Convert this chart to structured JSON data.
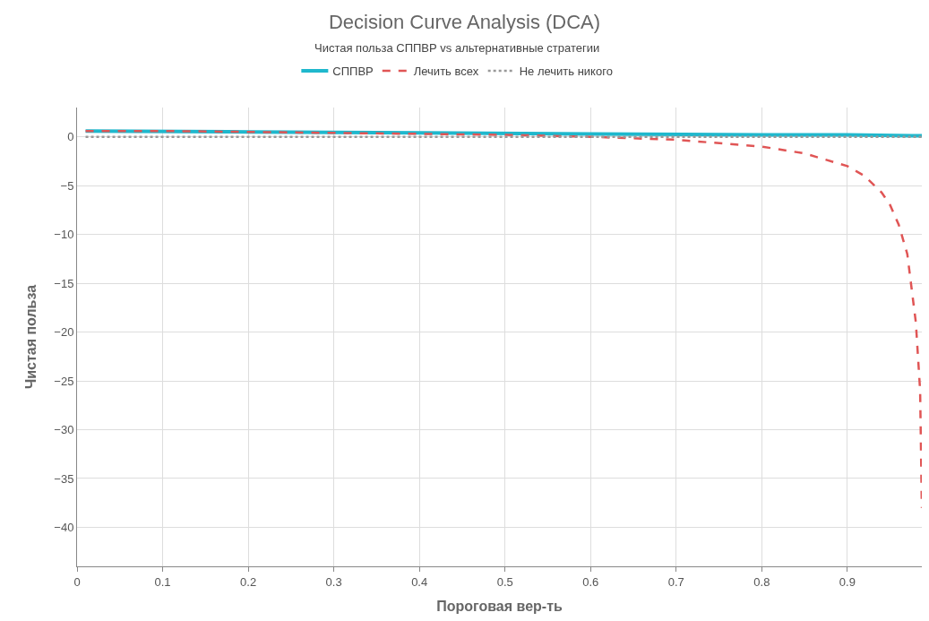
{
  "chart_data": {
    "type": "line",
    "title": "Decision Curve Analysis (DCA)",
    "subtitle": "Чистая польза СППВР vs альтернативные стратегии",
    "xlabel": "Пороговая вер-ть",
    "ylabel": "Чистая польза",
    "xlim": [
      0,
      0.987
    ],
    "ylim": [
      -44,
      3
    ],
    "xticks": [
      0,
      0.1,
      0.2,
      0.3,
      0.4,
      0.5,
      0.6,
      0.7,
      0.8,
      0.9
    ],
    "yticks": [
      -40,
      -35,
      -30,
      -25,
      -20,
      -15,
      -10,
      -5,
      0
    ],
    "grid": true,
    "legend": "top",
    "marker": "none",
    "series": [
      {
        "name": "СППВР",
        "color": "#1fb8cd",
        "line_style": "solid",
        "x": [
          0.01,
          0.2,
          0.4,
          0.6,
          0.8,
          0.9,
          0.987
        ],
        "values": [
          0.6,
          0.5,
          0.4,
          0.3,
          0.2,
          0.2,
          0.1
        ]
      },
      {
        "name": "Лечить всех",
        "color": "#e05555",
        "line_style": "dashed",
        "x": [
          0.01,
          0.1,
          0.2,
          0.3,
          0.4,
          0.5,
          0.6,
          0.7,
          0.8,
          0.85,
          0.9,
          0.92,
          0.94,
          0.95,
          0.96,
          0.97,
          0.98,
          0.985,
          0.987
        ],
        "values": [
          0.6,
          0.6,
          0.5,
          0.4,
          0.3,
          0.2,
          0,
          -0.3,
          -1,
          -1.7,
          -3,
          -4,
          -5.7,
          -7,
          -9,
          -12,
          -19,
          -26,
          -38
        ]
      },
      {
        "name": "Не лечить никого",
        "color": "#999999",
        "line_style": "dotted",
        "x": [
          0.01,
          0.987
        ],
        "values": [
          0,
          0
        ]
      }
    ]
  }
}
